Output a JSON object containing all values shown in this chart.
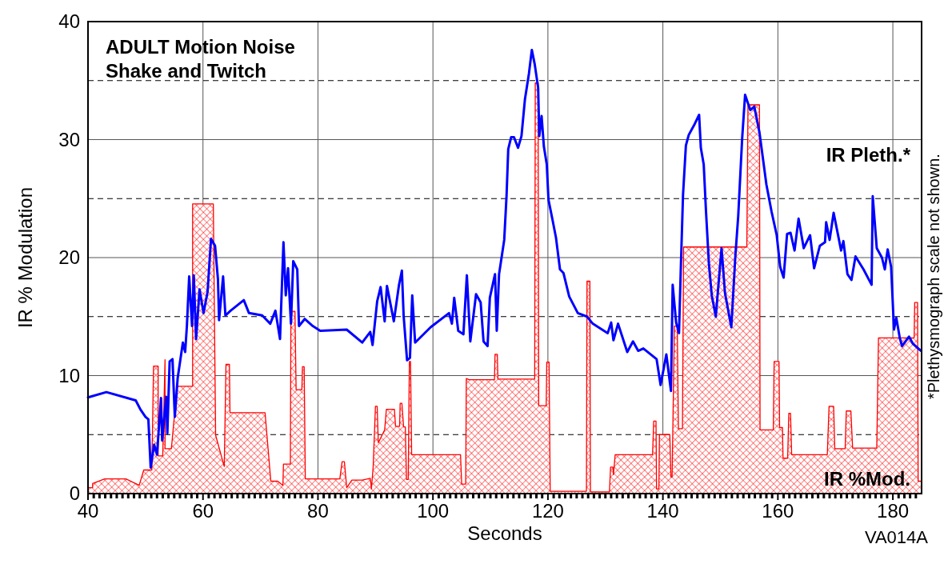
{
  "chart_data": {
    "type": "line",
    "title": "ADULT Motion Noise",
    "subtitle": "Shake and Twitch",
    "xlabel": "Seconds",
    "ylabel": "IR % Modulation",
    "annotations": [
      "*Plethysmograph scale not shown.",
      "VA014A"
    ],
    "xlim": [
      40,
      185
    ],
    "ylim": [
      0,
      40
    ],
    "yticks": [
      0,
      10,
      20,
      30,
      40
    ],
    "grid": true,
    "xticks": [
      40,
      {
        "value": 41,
        "label": null
      },
      {
        "value": 42,
        "label": null
      },
      {
        "value": 43,
        "label": null
      },
      {
        "value": 44,
        "label": null
      },
      {
        "value": 45,
        "label": null
      },
      {
        "value": 46,
        "label": null
      },
      {
        "value": 47,
        "label": null
      },
      {
        "value": 48,
        "label": null
      },
      {
        "value": 49,
        "label": null
      },
      {
        "value": 50,
        "label": null
      },
      {
        "value": 51,
        "label": null
      },
      {
        "value": 52,
        "label": null
      },
      {
        "value": 53,
        "label": null
      },
      {
        "value": 54,
        "label": null
      },
      {
        "value": 55,
        "label": null
      },
      {
        "value": 56,
        "label": null
      },
      {
        "value": 57,
        "label": null
      },
      {
        "value": 58,
        "label": null
      },
      {
        "value": 59,
        "label": null
      },
      60,
      {
        "value": 61,
        "label": null
      },
      {
        "value": 62,
        "label": null
      },
      {
        "value": 63,
        "label": null
      },
      {
        "value": 64,
        "label": null
      },
      {
        "value": 65,
        "label": null
      },
      {
        "value": 66,
        "label": null
      },
      {
        "value": 67,
        "label": null
      },
      {
        "value": 68,
        "label": null
      },
      {
        "value": 69,
        "label": null
      },
      {
        "value": 70,
        "label": null
      },
      {
        "value": 71,
        "label": null
      },
      {
        "value": 72,
        "label": null
      },
      {
        "value": 73,
        "label": null
      },
      {
        "value": 74,
        "label": null
      },
      {
        "value": 75,
        "label": null
      },
      {
        "value": 76,
        "label": null
      },
      {
        "value": 77,
        "label": null
      },
      {
        "value": 78,
        "label": null
      },
      {
        "value": 79,
        "label": null
      },
      80,
      {
        "value": 81,
        "label": null
      },
      {
        "value": 82,
        "label": null
      },
      {
        "value": 83,
        "label": null
      },
      {
        "value": 84,
        "label": null
      },
      {
        "value": 85,
        "label": null
      },
      {
        "value": 86,
        "label": null
      },
      {
        "value": 87,
        "label": null
      },
      {
        "value": 88,
        "label": null
      },
      {
        "value": 89,
        "label": null
      },
      {
        "value": 90,
        "label": null
      },
      {
        "value": 91,
        "label": null
      },
      {
        "value": 92,
        "label": null
      },
      {
        "value": 93,
        "label": null
      },
      {
        "value": 94,
        "label": null
      },
      {
        "value": 95,
        "label": null
      },
      {
        "value": 96,
        "label": null
      },
      {
        "value": 97,
        "label": null
      },
      {
        "value": 98,
        "label": null
      },
      {
        "value": 99,
        "label": null
      },
      100,
      {
        "value": 101,
        "label": null
      },
      {
        "value": 102,
        "label": null
      },
      {
        "value": 103,
        "label": null
      },
      {
        "value": 104,
        "label": null
      },
      {
        "value": 105,
        "label": null
      },
      {
        "value": 106,
        "label": null
      },
      {
        "value": 107,
        "label": null
      },
      {
        "value": 108,
        "label": null
      },
      {
        "value": 109,
        "label": null
      },
      {
        "value": 110,
        "label": null
      },
      {
        "value": 111,
        "label": null
      },
      {
        "value": 112,
        "label": null
      },
      {
        "value": 113,
        "label": null
      },
      {
        "value": 114,
        "label": null
      },
      {
        "value": 115,
        "label": null
      },
      {
        "value": 116,
        "label": null
      },
      {
        "value": 117,
        "label": null
      },
      {
        "value": 118,
        "label": null
      },
      {
        "value": 119,
        "label": null
      },
      120,
      {
        "value": 121,
        "label": null
      },
      {
        "value": 122,
        "label": null
      },
      {
        "value": 123,
        "label": null
      },
      {
        "value": 124,
        "label": null
      },
      {
        "value": 125,
        "label": null
      },
      {
        "value": 126,
        "label": null
      },
      {
        "value": 127,
        "label": null
      },
      {
        "value": 128,
        "label": null
      },
      {
        "value": 129,
        "label": null
      },
      {
        "value": 130,
        "label": null
      },
      {
        "value": 131,
        "label": null
      },
      {
        "value": 132,
        "label": null
      },
      {
        "value": 133,
        "label": null
      },
      {
        "value": 134,
        "label": null
      },
      {
        "value": 135,
        "label": null
      },
      {
        "value": 136,
        "label": null
      },
      {
        "value": 137,
        "label": null
      },
      {
        "value": 138,
        "label": null
      },
      {
        "value": 139,
        "label": null
      },
      140,
      {
        "value": 141,
        "label": null
      },
      {
        "value": 142,
        "label": null
      },
      {
        "value": 143,
        "label": null
      },
      {
        "value": 144,
        "label": null
      },
      {
        "value": 145,
        "label": null
      },
      {
        "value": 146,
        "label": null
      },
      {
        "value": 147,
        "label": null
      },
      {
        "value": 148,
        "label": null
      },
      {
        "value": 149,
        "label": null
      },
      {
        "value": 150,
        "label": null
      },
      {
        "value": 151,
        "label": null
      },
      {
        "value": 152,
        "label": null
      },
      {
        "value": 153,
        "label": null
      },
      {
        "value": 154,
        "label": null
      },
      {
        "value": 155,
        "label": null
      },
      {
        "value": 156,
        "label": null
      },
      {
        "value": 157,
        "label": null
      },
      {
        "value": 158,
        "label": null
      },
      {
        "value": 159,
        "label": null
      },
      160,
      {
        "value": 161,
        "label": null
      },
      {
        "value": 162,
        "label": null
      },
      {
        "value": 163,
        "label": null
      },
      {
        "value": 164,
        "label": null
      },
      {
        "value": 165,
        "label": null
      },
      {
        "value": 166,
        "label": null
      },
      {
        "value": 167,
        "label": null
      },
      {
        "value": 168,
        "label": null
      },
      {
        "value": 169,
        "label": null
      },
      {
        "value": 170,
        "label": null
      },
      {
        "value": 171,
        "label": null
      },
      {
        "value": 172,
        "label": null
      },
      {
        "value": 173,
        "label": null
      },
      {
        "value": 174,
        "label": null
      },
      {
        "value": 175,
        "label": null
      },
      {
        "value": 176,
        "label": null
      },
      {
        "value": 177,
        "label": null
      },
      {
        "value": 178,
        "label": null
      },
      {
        "value": 179,
        "label": null
      },
      180,
      {
        "value": 181,
        "label": null
      },
      {
        "value": 182,
        "label": null
      },
      {
        "value": 183,
        "label": null
      },
      {
        "value": 184,
        "label": null
      }
    ],
    "ref_lines": [
      {
        "axis": "y",
        "value": 5,
        "color": "#000000",
        "line_style": "dashed"
      },
      {
        "axis": "y",
        "value": 15,
        "color": "#000000",
        "line_style": "dashed"
      },
      {
        "axis": "y",
        "value": 25,
        "color": "#000000",
        "line_style": "dashed"
      },
      {
        "axis": "y",
        "value": 35,
        "color": "#000000",
        "line_style": "dashed"
      }
    ],
    "series": [
      {
        "name": "IR %Mod.",
        "type": "area",
        "color": "#ff0000",
        "x": [
          40,
          40.8,
          40.8,
          42.9,
          46.6,
          48.9,
          49.7,
          51.1,
          51.4,
          52.2,
          52.2,
          53.0,
          53.4,
          53.4,
          54.5,
          55.5,
          58.2,
          58.2,
          61.8,
          62.2,
          63.7,
          64.0,
          64.6,
          64.7,
          70.8,
          71.8,
          73.0,
          73.9,
          74.0,
          75.2,
          75.3,
          76.0,
          76.2,
          77.2,
          77.3,
          77.6,
          77.8,
          83.8,
          84.2,
          84.6,
          85.0,
          85.9,
          87.7,
          89.1,
          89.3,
          89.6,
          90.0,
          90.3,
          90.5,
          91.6,
          91.9,
          93.3,
          93.5,
          94.2,
          94.3,
          94.6,
          94.9,
          95.2,
          95.4,
          95.7,
          95.9,
          96.1,
          96.3,
          104.8,
          105.0,
          105.7,
          105.8,
          106.3,
          110.7,
          110.8,
          111.2,
          111.3,
          117.7,
          117.8,
          118.3,
          118.4,
          119.7,
          119.8,
          120.2,
          120.4,
          126.7,
          126.8,
          127.3,
          127.4,
          130.7,
          130.9,
          131.3,
          131.4,
          131.7,
          135.6,
          138.2,
          138.4,
          138.8,
          138.9,
          139.3,
          139.4,
          141.2,
          141.4,
          141.6,
          142.0,
          142.5,
          142.7,
          143.4,
          143.6,
          154.6,
          154.8,
          156.8,
          156.9,
          159.2,
          159.35,
          160.2,
          160.3,
          160.8,
          160.9,
          161.7,
          161.9,
          162.2,
          162.4,
          168.6,
          168.9,
          169.7,
          169.9,
          171.7,
          171.9,
          172.7,
          173.0,
          177.2,
          177.5,
          183.7,
          183.8,
          184.3,
          184.4,
          184.9
        ],
        "values": [
          0.5,
          0.5,
          0.85,
          1.25,
          1.25,
          0.7,
          2.0,
          2.0,
          10.8,
          10.8,
          3.2,
          3.2,
          11.35,
          3.8,
          3.8,
          9.1,
          9.1,
          24.55,
          24.55,
          4.95,
          2.3,
          10.95,
          10.95,
          6.85,
          6.85,
          1.05,
          1.05,
          0.7,
          2.5,
          2.5,
          15.45,
          15.45,
          8.8,
          8.8,
          10.75,
          10.75,
          1.25,
          1.25,
          2.7,
          2.7,
          0.5,
          1.15,
          1.15,
          1.3,
          0.4,
          2.25,
          7.4,
          7.4,
          4.3,
          5.4,
          7.15,
          7.15,
          5.7,
          5.7,
          7.65,
          7.65,
          5.65,
          5.65,
          1.2,
          1.2,
          11.2,
          11.2,
          3.3,
          3.3,
          0.8,
          0.8,
          9.75,
          9.65,
          9.65,
          11.8,
          11.8,
          9.7,
          9.7,
          34.8,
          34.8,
          7.45,
          7.45,
          11.15,
          11.15,
          0.2,
          0.2,
          18.0,
          18.0,
          0.15,
          0.15,
          2.25,
          2.25,
          1.6,
          3.3,
          3.3,
          3.3,
          6.15,
          6.15,
          0.4,
          0.4,
          5.0,
          5.0,
          1.4,
          1.4,
          14.2,
          14.2,
          5.5,
          5.5,
          20.9,
          20.9,
          32.95,
          32.95,
          5.4,
          5.4,
          11.2,
          11.2,
          5.6,
          5.6,
          3.0,
          3.0,
          6.8,
          6.8,
          3.3,
          3.3,
          7.4,
          7.4,
          3.8,
          3.8,
          7.0,
          7.0,
          3.85,
          3.85,
          13.2,
          13.2,
          16.2,
          16.2,
          1.05,
          1.05
        ]
      },
      {
        "name": "IR Pleth.*",
        "color": "#0000ff",
        "x": [
          40,
          43.2,
          48.3,
          49.1,
          50.0,
          50.5,
          50.9,
          51.5,
          52.0,
          52.7,
          52.9,
          53.6,
          53.8,
          54.2,
          54.7,
          55.1,
          55.6,
          56.5,
          56.9,
          57.2,
          57.6,
          58.1,
          58.4,
          58.8,
          59.4,
          60.1,
          60.8,
          61.4,
          62.1,
          62.6,
          62.8,
          63.5,
          63.9,
          64.8,
          67.1,
          68.0,
          70.3,
          71.7,
          72.6,
          73.4,
          74.0,
          74.4,
          74.8,
          75.3,
          75.7,
          76.4,
          76.7,
          77.7,
          79.1,
          80.4,
          85.0,
          87.7,
          89.1,
          89.5,
          90.3,
          90.9,
          91.6,
          92.0,
          93.2,
          94.1,
          94.6,
          94.9,
          95.5,
          96.0,
          96.4,
          96.9,
          99.6,
          102.8,
          103.3,
          103.7,
          104.4,
          105.3,
          105.9,
          106.5,
          107.5,
          108.3,
          108.8,
          109.5,
          109.9,
          110.8,
          111.1,
          111.5,
          112.0,
          112.4,
          112.8,
          113.1,
          113.6,
          114.1,
          114.8,
          115.4,
          116.0,
          116.7,
          117.2,
          117.7,
          118.3,
          118.5,
          118.9,
          119.3,
          119.8,
          120.1,
          120.8,
          121.4,
          122.1,
          122.7,
          123.7,
          125.2,
          126.8,
          127.8,
          130.4,
          131.0,
          131.4,
          132.2,
          133.8,
          134.8,
          135.7,
          136.6,
          138.9,
          139.6,
          140.6,
          141.4,
          141.7,
          142.3,
          142.8,
          143.1,
          143.5,
          144.0,
          144.5,
          145.4,
          146.3,
          146.6,
          147.1,
          147.5,
          148.0,
          148.5,
          149.2,
          150.2,
          150.8,
          151.9,
          152.6,
          153.1,
          153.8,
          154.3,
          155.2,
          155.9,
          156.8,
          158.0,
          158.9,
          159.8,
          160.4,
          161.0,
          161.6,
          162.2,
          162.9,
          163.6,
          164.5,
          165.6,
          166.3,
          167.3,
          168.2,
          168.4,
          169.0,
          169.7,
          171.0,
          171.4,
          172.1,
          172.8,
          173.5,
          174.9,
          176.3,
          176.5,
          177.2,
          178.1,
          178.6,
          179.1,
          179.7,
          180.2,
          180.6,
          181.2,
          181.6,
          182.8,
          183.5,
          184.9
        ],
        "values": [
          8.15,
          8.6,
          7.9,
          7.15,
          6.5,
          6.3,
          2.2,
          4.15,
          3.3,
          8.1,
          4.5,
          8.2,
          5.1,
          11.2,
          11.4,
          6.5,
          9.8,
          12.8,
          12.0,
          14.2,
          18.4,
          14.2,
          18.5,
          13.1,
          17.3,
          15.3,
          17.1,
          21.6,
          21.0,
          18.2,
          14.7,
          18.4,
          15.1,
          15.5,
          16.4,
          15.3,
          15.1,
          14.4,
          15.5,
          13.1,
          21.3,
          16.8,
          19.1,
          14.4,
          19.7,
          19.0,
          14.2,
          14.8,
          14.2,
          13.8,
          13.9,
          12.8,
          13.7,
          12.6,
          16.3,
          17.5,
          14.6,
          17.6,
          14.6,
          17.7,
          18.9,
          15.1,
          11.3,
          11.5,
          16.8,
          12.8,
          14.1,
          15.3,
          14.4,
          16.6,
          13.8,
          13.5,
          18.5,
          12.9,
          16.9,
          16.2,
          12.9,
          12.5,
          16.6,
          18.6,
          13.8,
          18.6,
          20.2,
          21.5,
          25.2,
          29.2,
          30.2,
          30.2,
          29.3,
          30.3,
          33.4,
          35.6,
          37.6,
          36.4,
          34.4,
          30.3,
          32.0,
          29.4,
          27.9,
          24.9,
          23.2,
          21.7,
          19.0,
          18.7,
          16.7,
          15.3,
          15.0,
          14.4,
          13.6,
          14.5,
          13.0,
          14.4,
          12.0,
          12.9,
          12.1,
          12.3,
          11.4,
          9.2,
          11.8,
          8.7,
          17.7,
          14.5,
          13.6,
          18.8,
          25.3,
          29.5,
          30.4,
          31.2,
          32.1,
          29.3,
          27.9,
          23.9,
          19.5,
          16.8,
          15.0,
          20.8,
          17.0,
          14.1,
          20.1,
          23.5,
          30.2,
          33.8,
          32.5,
          32.8,
          30.6,
          26.2,
          23.9,
          21.9,
          19.2,
          18.3,
          22.0,
          22.1,
          20.6,
          23.3,
          20.8,
          21.9,
          19.1,
          21.0,
          21.3,
          23.0,
          21.5,
          23.8,
          20.6,
          21.4,
          18.6,
          18.1,
          20.1,
          19.0,
          17.7,
          25.2,
          20.8,
          20.0,
          19.0,
          20.7,
          19.2,
          13.9,
          14.9,
          13.2,
          12.5,
          13.3,
          12.7,
          12.1
        ]
      }
    ]
  }
}
